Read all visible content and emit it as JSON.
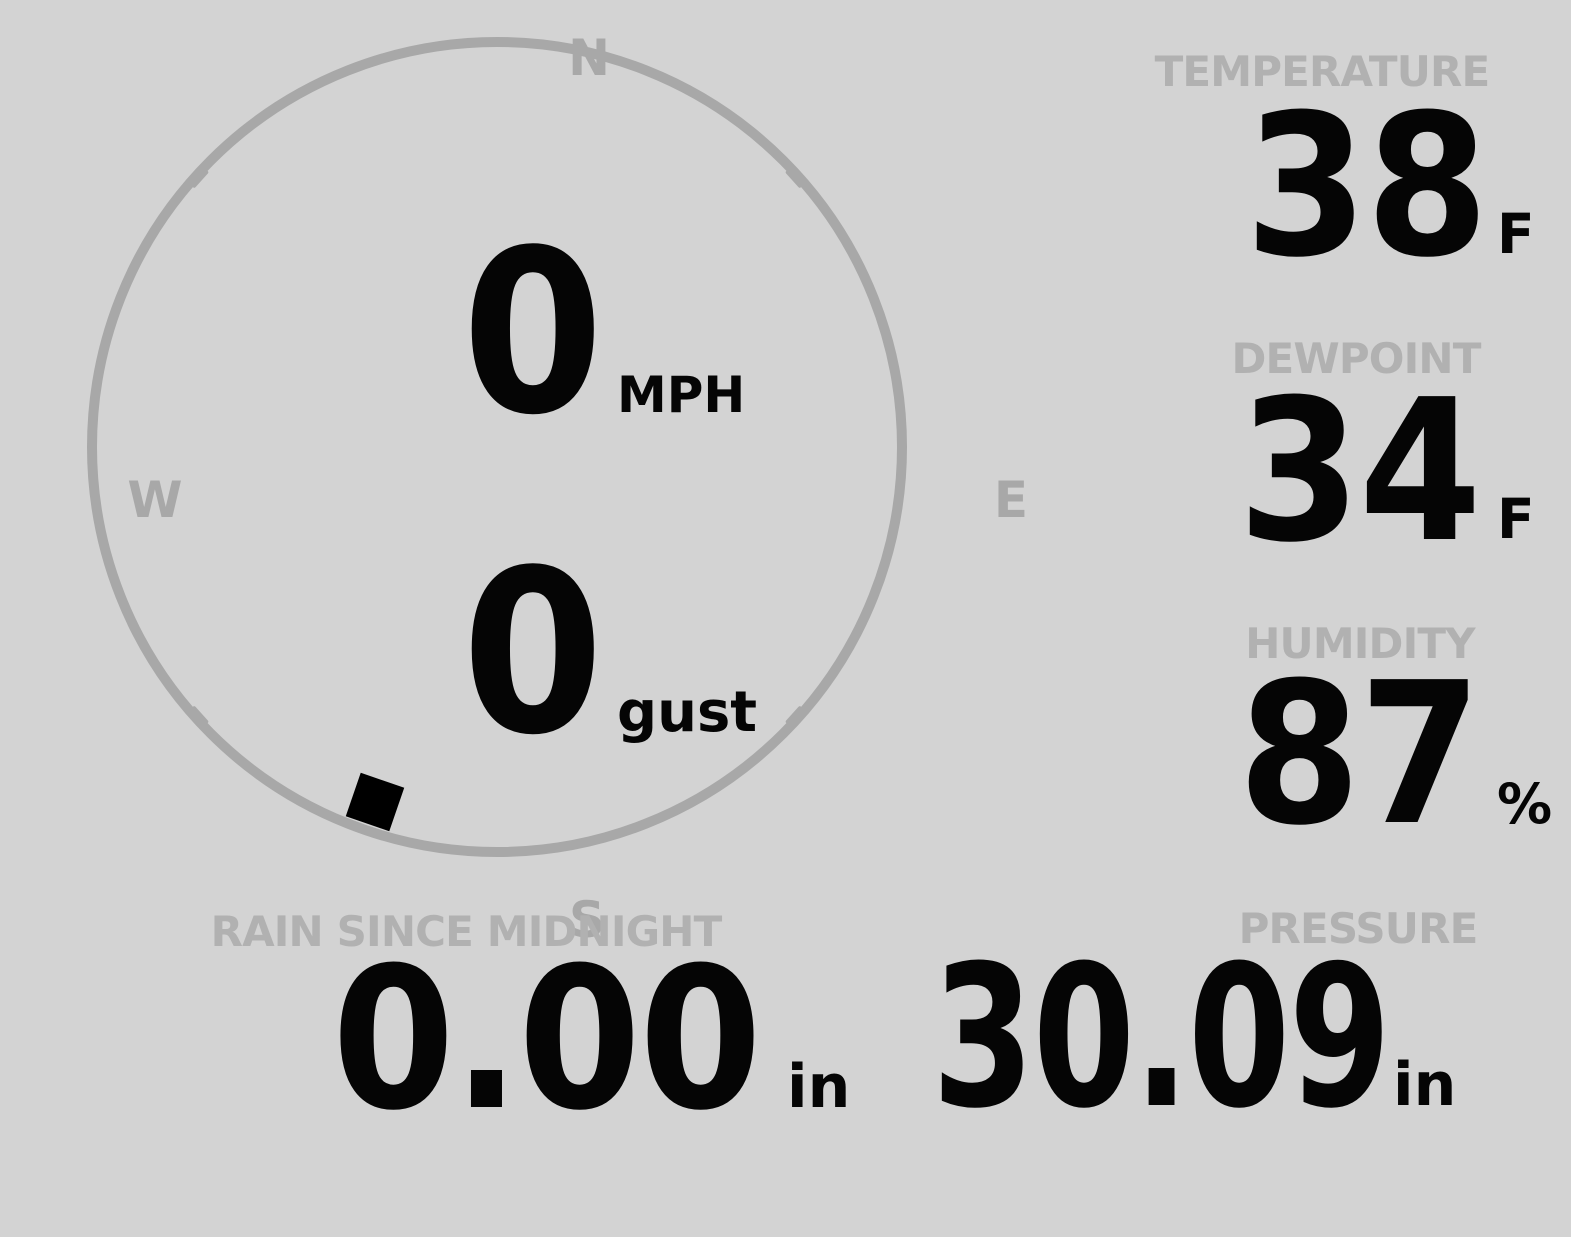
{
  "display": {
    "background_color": "#d3d3d3",
    "muted_color": "#a8a8a8",
    "label_color": "#b1b1b1",
    "value_color": "#050505"
  },
  "compass": {
    "cardinals": {
      "north": "N",
      "east": "E",
      "south": "S",
      "west": "W"
    },
    "speed": {
      "value": "0",
      "unit": "MPH"
    },
    "gust": {
      "value": "0",
      "unit": "gust"
    },
    "direction_deg": 199
  },
  "gauges": {
    "temperature": {
      "label": "TEMPERATURE",
      "value": "38",
      "unit": "F"
    },
    "dewpoint": {
      "label": "DEWPOINT",
      "value": "34",
      "unit": "F"
    },
    "humidity": {
      "label": "HUMIDITY",
      "value": "87",
      "unit": "%"
    },
    "rain": {
      "label": "RAIN SINCE MIDNIGHT",
      "value": "0.00",
      "unit": "in"
    },
    "pressure": {
      "label": "PRESSURE",
      "value": "30.09",
      "unit": "in"
    }
  }
}
